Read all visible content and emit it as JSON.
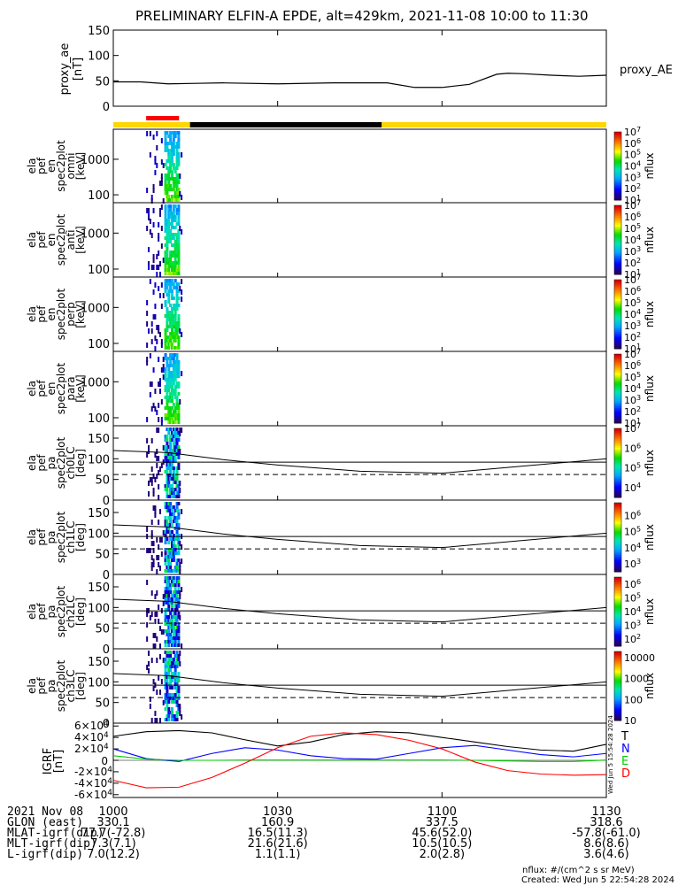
{
  "title": "PRELIMINARY ELFIN-A EPDE, alt=429km, 2021-11-08 10:00 to 11:30",
  "chart_data": [
    {
      "type": "line",
      "name": "proxy_ae",
      "ylabel": "proxy_ae [nT]",
      "legend": "proxy_AE",
      "ylim": [
        0,
        150
      ],
      "yticks": [
        "0",
        "50",
        "100",
        "150"
      ],
      "x_minutes": [
        0,
        5,
        10,
        15,
        20,
        30,
        40,
        50,
        55,
        60,
        65,
        70,
        72,
        75,
        80,
        85,
        90
      ],
      "values": [
        48,
        48,
        44,
        45,
        46,
        44,
        46,
        46,
        37,
        37,
        43,
        63,
        65,
        64,
        61,
        59,
        61
      ]
    },
    {
      "type": "heatmap",
      "name": "ela_pef_en_spec2plot_omni",
      "ylabel": [
        "ela",
        "pef",
        "en",
        "spec2plot",
        "omni",
        "[keV]"
      ],
      "yscale": "log",
      "ylim": [
        60,
        7000
      ],
      "yticks": [
        "100",
        "1000"
      ],
      "colorbar": {
        "label": "nflux",
        "ticks": [
          "10^1",
          "10^2",
          "10^3",
          "10^4",
          "10^5",
          "10^6",
          "10^7"
        ],
        "log_range": [
          1,
          7
        ]
      }
    },
    {
      "type": "heatmap",
      "name": "ela_pef_en_spec2plot_anti",
      "ylabel": [
        "ela",
        "pef",
        "en",
        "spec2plot",
        "anti",
        "[keV]"
      ],
      "yscale": "log",
      "ylim": [
        60,
        7000
      ],
      "yticks": [
        "100",
        "1000"
      ],
      "colorbar": {
        "label": "nflux",
        "ticks": [
          "10^1",
          "10^2",
          "10^3",
          "10^4",
          "10^5",
          "10^6",
          "10^7"
        ],
        "log_range": [
          1,
          7
        ]
      }
    },
    {
      "type": "heatmap",
      "name": "ela_pef_en_spec2plot_perp",
      "ylabel": [
        "ela",
        "pef",
        "en",
        "spec2plot",
        "perp",
        "[keV]"
      ],
      "yscale": "log",
      "ylim": [
        60,
        7000
      ],
      "yticks": [
        "100",
        "1000"
      ],
      "colorbar": {
        "label": "nflux",
        "ticks": [
          "10^1",
          "10^2",
          "10^3",
          "10^4",
          "10^5",
          "10^6",
          "10^7"
        ],
        "log_range": [
          1,
          7
        ]
      }
    },
    {
      "type": "heatmap",
      "name": "ela_pef_en_spec2plot_para",
      "ylabel": [
        "ela",
        "pef",
        "en",
        "spec2plot",
        "para",
        "[keV]"
      ],
      "yscale": "log",
      "ylim": [
        60,
        7000
      ],
      "yticks": [
        "100",
        "1000"
      ],
      "colorbar": {
        "label": "nflux",
        "ticks": [
          "10^1",
          "10^2",
          "10^3",
          "10^4",
          "10^5",
          "10^6",
          "10^7"
        ],
        "log_range": [
          1,
          7
        ]
      }
    },
    {
      "type": "heatmap",
      "name": "ela_pef_pa_spec2plot_ch0LC",
      "ylabel": [
        "ela",
        "pef",
        "pa",
        "spec2plot",
        "ch0LC",
        "[deg]"
      ],
      "ylim": [
        0,
        180
      ],
      "yticks": [
        "0",
        "50",
        "100",
        "150"
      ],
      "colorbar": {
        "label": "nflux",
        "ticks": [
          "10^4",
          "10^5",
          "10^6",
          "10^7"
        ],
        "log_range": [
          3.5,
          7
        ]
      }
    },
    {
      "type": "heatmap",
      "name": "ela_pef_pa_spec2plot_ch1LC",
      "ylabel": [
        "ela",
        "pef",
        "pa",
        "spec2plot",
        "ch1LC",
        "[deg]"
      ],
      "ylim": [
        0,
        180
      ],
      "yticks": [
        "0",
        "50",
        "100",
        "150"
      ],
      "colorbar": {
        "label": "nflux",
        "ticks": [
          "10^3",
          "10^4",
          "10^5",
          "10^6"
        ],
        "log_range": [
          2.5,
          6.8
        ]
      }
    },
    {
      "type": "heatmap",
      "name": "ela_pef_pa_spec2plot_ch2LC",
      "ylabel": [
        "ela",
        "pef",
        "pa",
        "spec2plot",
        "ch2LC",
        "[deg]"
      ],
      "ylim": [
        0,
        180
      ],
      "yticks": [
        "0",
        "50",
        "100",
        "150"
      ],
      "colorbar": {
        "label": "nflux",
        "ticks": [
          "10^2",
          "10^3",
          "10^4",
          "10^5",
          "10^6"
        ],
        "log_range": [
          1.5,
          6.5
        ]
      }
    },
    {
      "type": "heatmap",
      "name": "ela_pef_pa_spec2plot_ch3LC",
      "ylabel": [
        "ela",
        "pef",
        "pa",
        "spec2plot",
        "ch3LC",
        "[deg]"
      ],
      "ylim": [
        0,
        180
      ],
      "yticks": [
        "0",
        "50",
        "100",
        "150"
      ],
      "colorbar": {
        "label": "nflux",
        "ticks": [
          "10",
          "100",
          "1000",
          "10000"
        ],
        "log_range": [
          1,
          4.3
        ]
      }
    },
    {
      "type": "line",
      "name": "IGRF",
      "ylabel": "IGRF [nT]",
      "ylim": [
        -65000,
        65000
      ],
      "yticks": [
        "-6×10^4",
        "-4×10^4",
        "-2×10^4",
        "0",
        "2×10^4",
        "4×10^4",
        "6×10^4"
      ],
      "x_minutes": [
        0,
        6,
        12,
        18,
        24,
        30,
        36,
        42,
        48,
        54,
        60,
        66,
        72,
        78,
        84,
        90
      ],
      "series": [
        {
          "name": "T",
          "color": "#000000",
          "values": [
            42000,
            50000,
            52000,
            48000,
            36000,
            25000,
            32000,
            45000,
            50000,
            48000,
            40000,
            32000,
            24000,
            18000,
            16000,
            28000
          ]
        },
        {
          "name": "N",
          "color": "#0000ff",
          "values": [
            20000,
            3000,
            -2000,
            12000,
            22000,
            18000,
            8000,
            3000,
            2000,
            12000,
            22000,
            26000,
            18000,
            10000,
            6000,
            12000
          ]
        },
        {
          "name": "E",
          "color": "#00cc00",
          "values": [
            8000,
            2000,
            0,
            0,
            500,
            500,
            500,
            500,
            500,
            500,
            500,
            0,
            -1000,
            -2000,
            -2000,
            500
          ]
        },
        {
          "name": "D",
          "color": "#ff0000",
          "values": [
            -35000,
            -48000,
            -47000,
            -30000,
            -5000,
            22000,
            42000,
            48000,
            45000,
            35000,
            20000,
            -3000,
            -18000,
            -24000,
            -26000,
            -25000
          ]
        }
      ]
    }
  ],
  "field_lines": {
    "comment": "lower/solid field-line pitch angle curves on PA panels",
    "x_minutes": [
      0,
      10,
      20,
      30,
      45,
      60,
      90
    ],
    "upper": [
      120,
      115,
      98,
      85,
      70,
      65,
      100
    ],
    "middle": [
      92,
      92,
      92,
      92,
      92,
      92,
      92
    ],
    "dashed": [
      62,
      62,
      62,
      62,
      62,
      62,
      62
    ]
  },
  "status_bar": {
    "segments": [
      "yellow",
      "black",
      "yellow"
    ],
    "red_marker": "10:07-10:09"
  },
  "x_axis": {
    "rows": [
      {
        "label": "2021 Nov 08",
        "values": [
          "1000",
          "1030",
          "1100",
          "1130"
        ]
      },
      {
        "label": "GLON (east)",
        "values": [
          "330.1",
          "160.9",
          "337.5",
          "318.6"
        ]
      },
      {
        "label": "MLAT-igrf(dip)",
        "values": [
          "77.7(-72.8)",
          "16.5(11.3)",
          "45.6(52.0)",
          "-57.8(-61.0)"
        ]
      },
      {
        "label": "MLT-igrf(dip)",
        "values": [
          "7.3(7.1)",
          "21.6(21.6)",
          "10.5(10.5)",
          "8.6(8.6)"
        ]
      },
      {
        "label": "L-igrf(dip)",
        "values": [
          "7.0(12.2)",
          "1.1(1.1)",
          "2.0(2.8)",
          "3.6(4.6)"
        ]
      }
    ]
  },
  "footer": {
    "units": "nflux: #/(cm^2 s sr MeV)",
    "created": "Created: Wed Jun  5 22:54:28 2024",
    "side_stamp": "Wed Jun  5 15:54:28 2024"
  },
  "colors": {
    "yellow": "#ffd700",
    "red": "#ff0000",
    "black": "#000000"
  }
}
